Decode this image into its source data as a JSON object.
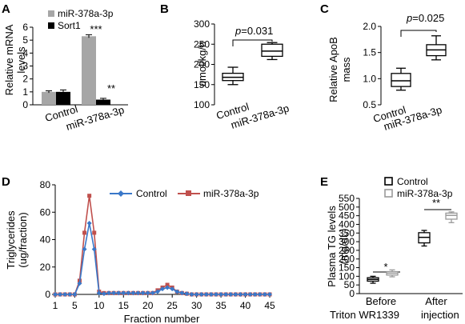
{
  "colors": {
    "control_bar": "#a6a6a6",
    "sort1_bar": "#000000",
    "control_line": "#3a78c9",
    "mir_line": "#c0504d",
    "control_box": "#000000",
    "mir_box": "#9a9a9a"
  },
  "chart_data": [
    {
      "panel": "A",
      "type": "bar",
      "categories": [
        "Control",
        "miR-378a-3p"
      ],
      "series": [
        {
          "name": "miR-378a-3p",
          "values": [
            1.0,
            5.3
          ],
          "errors": [
            0.08,
            0.12
          ]
        },
        {
          "name": "Sort1",
          "values": [
            1.0,
            0.4
          ],
          "errors": [
            0.15,
            0.1
          ]
        }
      ],
      "significance": [
        {
          "category": "miR-378a-3p",
          "series": "miR-378a-3p",
          "label": "***"
        },
        {
          "category": "miR-378a-3p",
          "series": "Sort1",
          "label": "**"
        }
      ],
      "ylabel": "Relative mRNA levels",
      "ylim": [
        0,
        6
      ],
      "yticks": [
        "0",
        "1",
        "2",
        "3",
        "4",
        "5",
        "6"
      ],
      "legend_position": "top"
    },
    {
      "panel": "B",
      "type": "box",
      "categories": [
        "Control",
        "miR-378a-3p"
      ],
      "boxes": [
        {
          "min": 150,
          "q1": 160,
          "median": 168,
          "q3": 178,
          "max": 193
        },
        {
          "min": 212,
          "q1": 220,
          "median": 233,
          "q3": 250,
          "max": 254
        }
      ],
      "annotation": "p=0.031",
      "ylabel": "umol/kg/h",
      "ylim": [
        100,
        300
      ],
      "yticks": [
        "100",
        "150",
        "200",
        "250",
        "300"
      ]
    },
    {
      "panel": "C",
      "type": "box",
      "categories": [
        "Control",
        "miR-378a-3p"
      ],
      "boxes": [
        {
          "min": 0.78,
          "q1": 0.85,
          "median": 0.96,
          "q3": 1.1,
          "max": 1.2
        },
        {
          "min": 1.36,
          "q1": 1.44,
          "median": 1.55,
          "q3": 1.65,
          "max": 1.82
        }
      ],
      "annotation": "p=0.025",
      "ylabel": "Relative ApoB mass",
      "ylim": [
        0.5,
        2.0
      ],
      "yticks": [
        "0.5",
        "1.0",
        "1.5",
        "2.0"
      ]
    },
    {
      "panel": "D",
      "type": "line",
      "series": [
        {
          "name": "Control",
          "x": [
            1,
            2,
            3,
            4,
            5,
            6,
            7,
            8,
            9,
            10,
            11,
            12,
            13,
            14,
            15,
            16,
            17,
            18,
            19,
            20,
            21,
            22,
            23,
            24,
            25,
            26,
            27,
            28,
            29,
            30,
            31,
            32,
            33,
            34,
            35,
            36,
            37,
            38,
            39,
            40,
            41,
            42,
            43,
            44,
            45
          ],
          "values": [
            0,
            0,
            0,
            0,
            0,
            8,
            33,
            52,
            33,
            1,
            0.5,
            1,
            1,
            1,
            1,
            1,
            1,
            1,
            1,
            1,
            1,
            2,
            4,
            5,
            4,
            2,
            1,
            0.5,
            0,
            0,
            0,
            0,
            0,
            0,
            0,
            0,
            0,
            0,
            0,
            0,
            0,
            0,
            0,
            0,
            0
          ]
        },
        {
          "name": "miR-378a-3p",
          "x": [
            1,
            2,
            3,
            4,
            5,
            6,
            7,
            8,
            9,
            10,
            11,
            12,
            13,
            14,
            15,
            16,
            17,
            18,
            19,
            20,
            21,
            22,
            23,
            24,
            25,
            26,
            27,
            28,
            29,
            30,
            31,
            32,
            33,
            34,
            35,
            36,
            37,
            38,
            39,
            40,
            41,
            42,
            43,
            44,
            45
          ],
          "values": [
            0,
            0,
            0,
            0,
            0,
            10,
            45,
            72,
            45,
            2,
            1,
            1,
            1,
            1,
            1,
            1,
            1,
            1,
            1,
            1,
            1,
            3,
            5,
            7,
            5,
            2,
            1,
            0.5,
            0,
            0,
            0,
            0,
            0,
            0,
            0,
            0,
            0,
            0,
            0,
            0,
            0,
            0,
            0,
            0,
            0
          ]
        }
      ],
      "xlabel": "Fraction number",
      "ylabel": "Triglycerides (ug/fraction)",
      "xlim": [
        1,
        45
      ],
      "ylim": [
        0,
        80
      ],
      "xticks": [
        "1",
        "5",
        "10",
        "15",
        "20",
        "25",
        "30",
        "35",
        "40",
        "45"
      ],
      "yticks": [
        "0",
        "20",
        "40",
        "60",
        "80"
      ],
      "legend_position": "top-right"
    },
    {
      "panel": "E",
      "type": "box",
      "categories": [
        "Before",
        "After"
      ],
      "series": [
        {
          "name": "Control",
          "boxes": [
            {
              "min": 60,
              "q1": 72,
              "median": 82,
              "q3": 92,
              "max": 100
            },
            {
              "min": 275,
              "q1": 293,
              "median": 325,
              "q3": 352,
              "max": 365
            }
          ]
        },
        {
          "name": "miR-378a-3p",
          "boxes": [
            {
              "min": 97,
              "q1": 107,
              "median": 118,
              "q3": 127,
              "max": 137
            },
            {
              "min": 410,
              "q1": 430,
              "median": 452,
              "q3": 465,
              "max": 472
            }
          ]
        }
      ],
      "significance": [
        {
          "category": "Before",
          "label": "*"
        },
        {
          "category": "After",
          "label": "**"
        }
      ],
      "xlabel": "Triton WR1339 injection",
      "ylabel": "Plasma TG levels (mg/dL)",
      "ylim": [
        0,
        550
      ],
      "yticks": [
        "0",
        "50",
        "100",
        "150",
        "200",
        "250",
        "300",
        "350",
        "400",
        "450",
        "500",
        "550"
      ],
      "legend_position": "top"
    }
  ],
  "labels": {
    "A": "A",
    "B": "B",
    "C": "C",
    "D": "D",
    "E": "E",
    "a_ylabel_1": "Relative mRNA",
    "a_ylabel_2": "levels",
    "a_leg1": "miR-378a-3p",
    "a_leg2": "Sort1",
    "a_sig1": "***",
    "a_sig2": "**",
    "a_cat1": "Control",
    "a_cat2": "miR-378a-3p",
    "b_ylabel": "umol/kg/h",
    "b_p": "p",
    "b_pval": "=0.031",
    "b_cat1": "Control",
    "b_cat2": "miR-378a-3p",
    "c_ylabel_1": "Relative ApoB",
    "c_ylabel_2": "mass",
    "c_p": "p",
    "c_pval": "=0.025",
    "c_cat1": "Control",
    "c_cat2": "miR-378a-3p",
    "d_ylabel_1": "Triglycerides",
    "d_ylabel_2": "(ug/fraction)",
    "d_xlabel": "Fraction number",
    "d_leg1": "Control",
    "d_leg2": "miR-378a-3p",
    "e_ylabel_1": "Plasma TG levels",
    "e_ylabel_2": "(mg/dL)",
    "e_leg1": "Control",
    "e_leg2": "miR-378a-3p",
    "e_cat1": "Before",
    "e_cat2": "After",
    "e_xlabel_1": "Triton WR1339",
    "e_xlabel_2": "injection",
    "e_sig1": "*",
    "e_sig2": "**"
  }
}
